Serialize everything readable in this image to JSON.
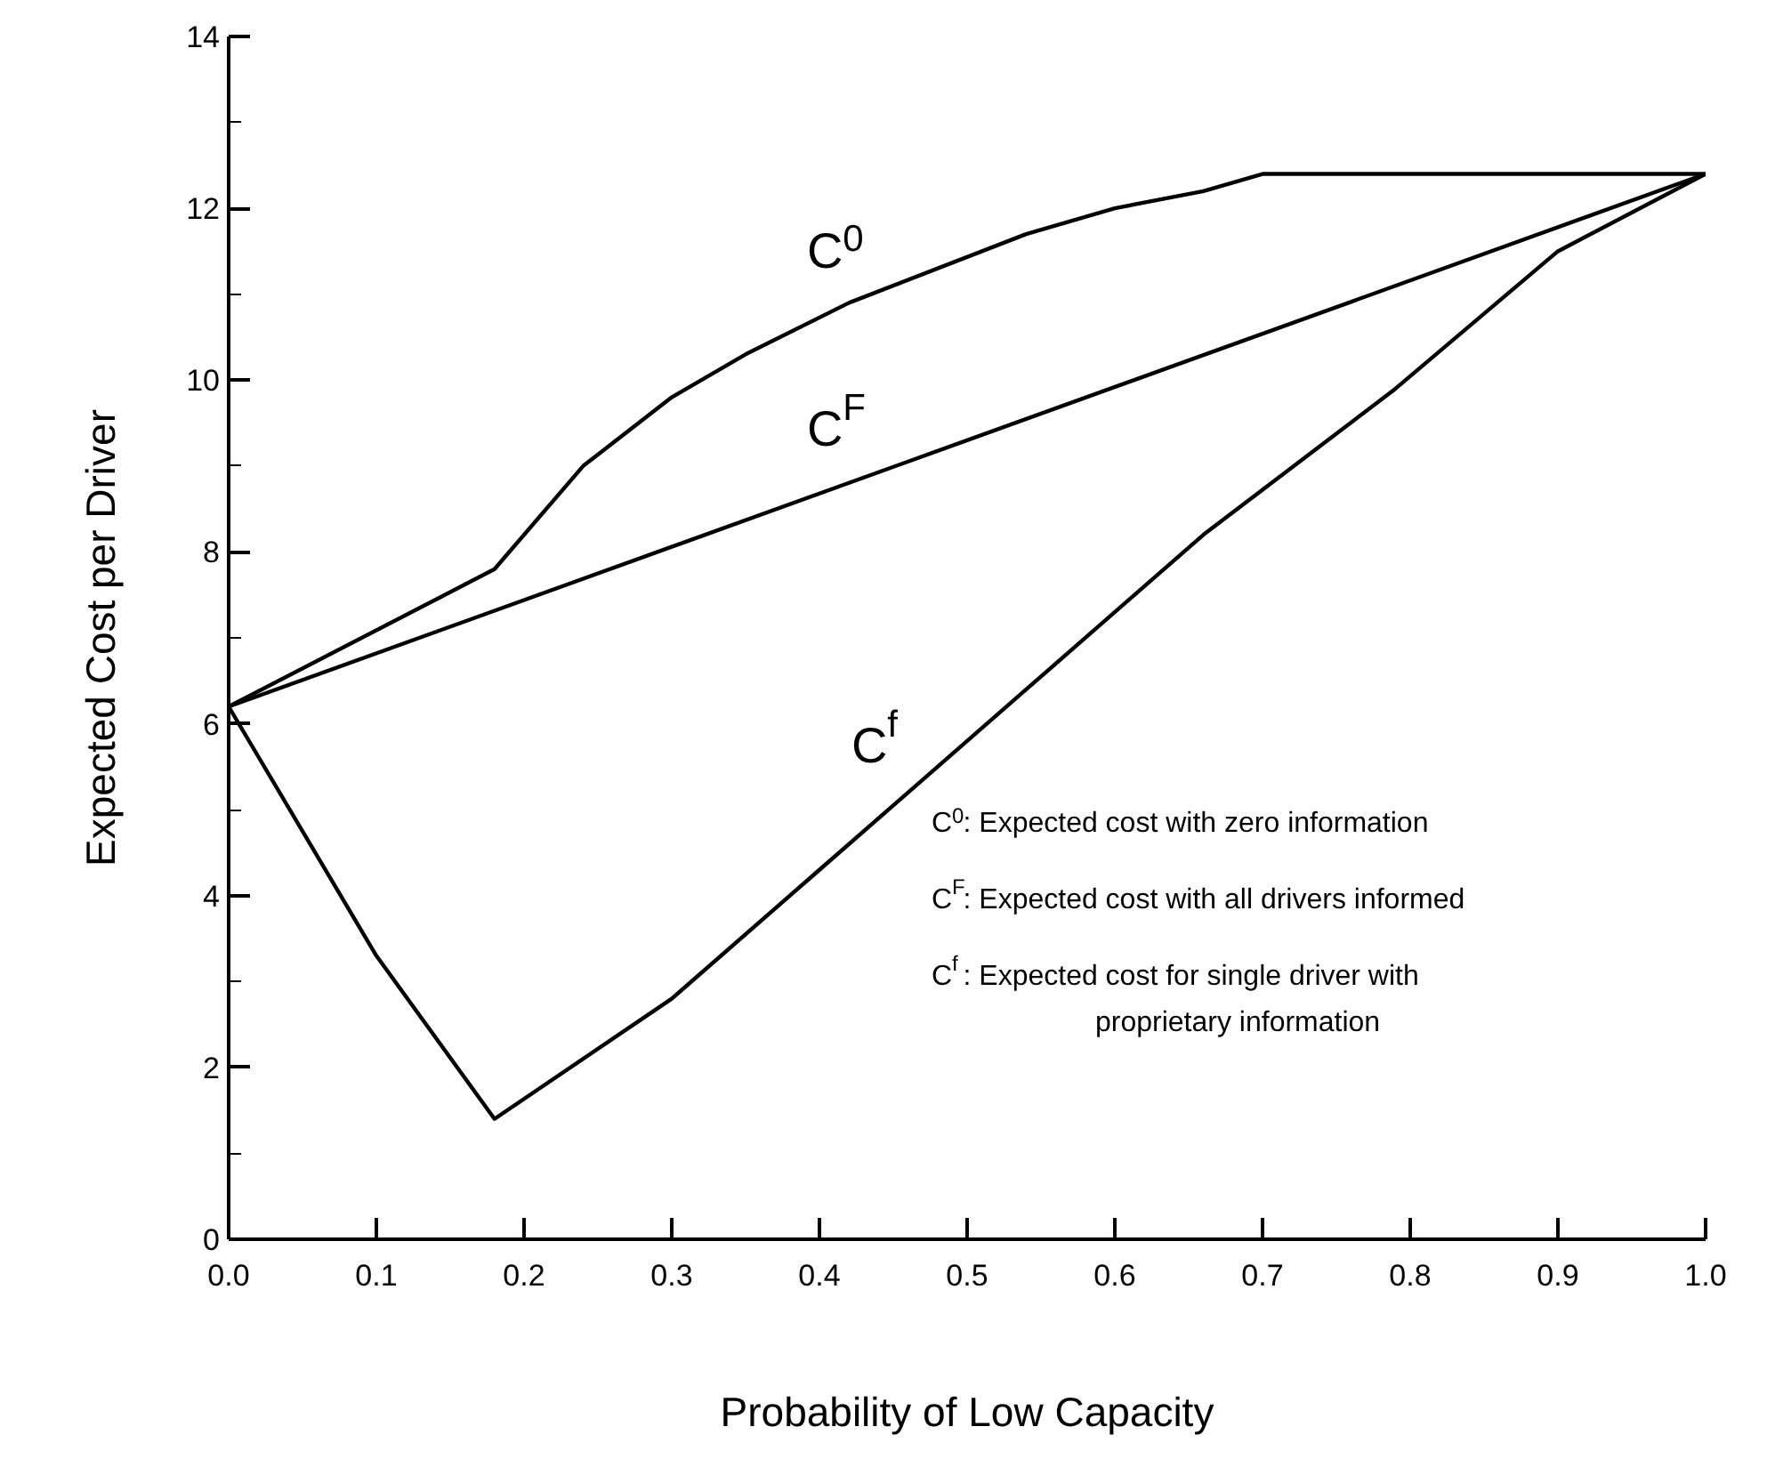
{
  "chart_data": {
    "type": "line",
    "xlabel": "Probability of Low Capacity",
    "ylabel": "Expected Cost per Driver",
    "series": [
      {
        "color": "#000000",
        "x": [
          0,
          0.18,
          0.24,
          0.3,
          0.35,
          0.42,
          0.54,
          0.6,
          0.66,
          0.7,
          1.0
        ],
        "values": [
          6.2,
          7.8,
          9.0,
          9.8,
          10.3,
          10.9,
          11.7,
          12.0,
          12.2,
          12.4,
          12.4
        ]
      },
      {
        "color": "#000000",
        "x": [
          0,
          1.0
        ],
        "values": [
          6.2,
          12.4
        ]
      },
      {
        "color": "#000000",
        "x": [
          0,
          0.1,
          0.18,
          0.3,
          0.4,
          0.54,
          0.66,
          0.79,
          0.9,
          1.0
        ],
        "values": [
          6.2,
          3.3,
          1.4,
          2.8,
          4.3,
          6.4,
          8.2,
          9.9,
          11.5,
          12.4
        ]
      }
    ],
    "annotations": [
      "C$^{0}$",
      "C$^{F}$",
      "C$^{f}$",
      "C$^{0}$: Expected cost with zero information",
      "C$^{F}$: Expected cost with all drivers informed",
      "C$^{f}$: Expected cost for single driver with\nproprietary information"
    ],
    "xlim": [
      0,
      1.0
    ],
    "ylim": [
      0,
      14
    ],
    "xticks": [
      {
        "value": 0,
        "label": "0.0"
      },
      0.1,
      0.2,
      0.3,
      0.4,
      0.5,
      0.6,
      0.7,
      0.8,
      0.9,
      {
        "value": 1.0,
        "label": "1.0"
      }
    ],
    "yticks": [
      0,
      {
        "value": 1,
        "label": null
      },
      2,
      {
        "value": 3,
        "label": null
      },
      4,
      {
        "value": 5,
        "label": null
      },
      6,
      {
        "value": 7,
        "label": null
      },
      8,
      {
        "value": 9,
        "label": null
      },
      10,
      {
        "value": 11,
        "label": null
      },
      12,
      {
        "value": 13,
        "label": null
      },
      14
    ],
    "grid": false,
    "line_style": "solid",
    "marker": "none"
  }
}
